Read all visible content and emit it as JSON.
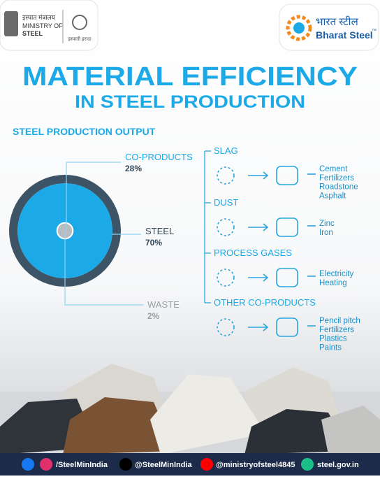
{
  "header": {
    "ministry_hindi": "इस्पात मंत्रालय",
    "ministry": "MINISTRY OF",
    "ministry2": "STEEL",
    "logo_text": "इस्पाती इरादा",
    "brand_hindi": "भारत स्टील",
    "brand": "Bharat Steel",
    "brand_tm": "™"
  },
  "title": "MATERIAL EFFICIENCY",
  "subtitle": "IN STEEL PRODUCTION",
  "chart_data": {
    "type": "pie",
    "title": "STEEL PRODUCTION OUTPUT",
    "categories": [
      "CO-PRODUCTS",
      "STEEL",
      "WASTE"
    ],
    "values": [
      28,
      70,
      2
    ],
    "value_labels": [
      "28%",
      "70%",
      "2%"
    ],
    "colors": [
      "#3d5466",
      "#1ba9e8",
      "#b9bcc0"
    ]
  },
  "flows": [
    {
      "name": "SLAG",
      "outputs": [
        "Cement",
        "Fertilizers",
        "Roadstone",
        "Asphalt"
      ]
    },
    {
      "name": "DUST",
      "outputs": [
        "Zinc",
        "Iron"
      ]
    },
    {
      "name": "PROCESS GASES",
      "outputs": [
        "Electricity",
        "Heating"
      ]
    },
    {
      "name": "OTHER CO-PRODUCTS",
      "outputs": [
        "Pencil pitch",
        "Fertilizers",
        "Plastics",
        "Paints"
      ]
    }
  ],
  "footer": [
    "/SteelMinIndia",
    "@SteelMinIndia",
    "@ministryofsteel4845",
    "steel.gov.in"
  ]
}
